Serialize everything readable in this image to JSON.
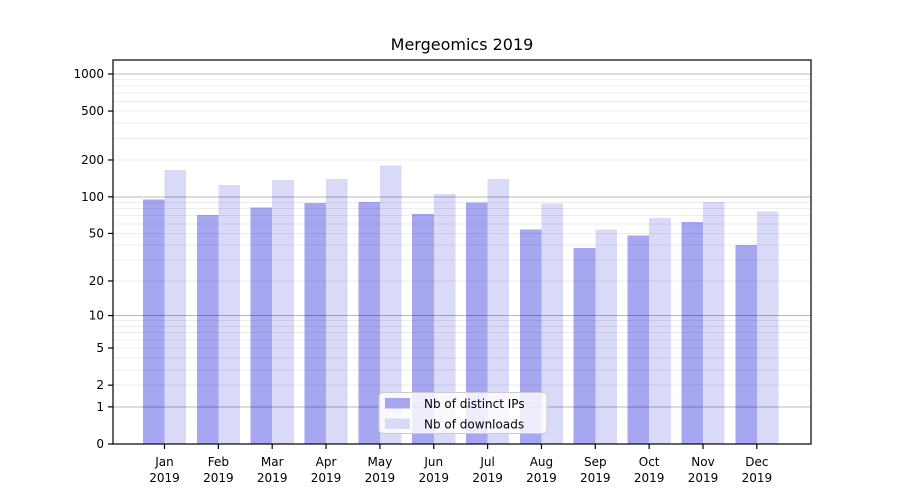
{
  "chart_data": {
    "type": "bar",
    "title": "Mergeomics 2019",
    "categories": [
      "Jan",
      "Feb",
      "Mar",
      "Apr",
      "May",
      "Jun",
      "Jul",
      "Aug",
      "Sep",
      "Oct",
      "Nov",
      "Dec"
    ],
    "category_year": "2019",
    "series": [
      {
        "name": "Nb of distinct IPs",
        "color": "#a6a6f1",
        "values": [
          95,
          71,
          82,
          89,
          91,
          72,
          90,
          54,
          38,
          48,
          62,
          40
        ]
      },
      {
        "name": "Nb of downloads",
        "color": "#d9d9f8",
        "values": [
          165,
          125,
          137,
          140,
          180,
          105,
          140,
          88,
          54,
          67,
          91,
          76
        ]
      }
    ],
    "xlabel": "",
    "ylabel": "",
    "yscale": "log1p",
    "yticks": [
      0,
      1,
      2,
      5,
      10,
      20,
      50,
      100,
      200,
      500,
      1000
    ],
    "ylim": [
      0,
      1300
    ],
    "grid": {
      "on": true,
      "major_lines": [
        1,
        10,
        100,
        1000
      ],
      "minor_mantissas": [
        2,
        3,
        4,
        5,
        6,
        7,
        8,
        9
      ],
      "major_color": "rgba(0,0,0,0.28)",
      "minor_color": "rgba(0,0,0,0.07)"
    },
    "legend": {
      "position": "lower center"
    }
  }
}
